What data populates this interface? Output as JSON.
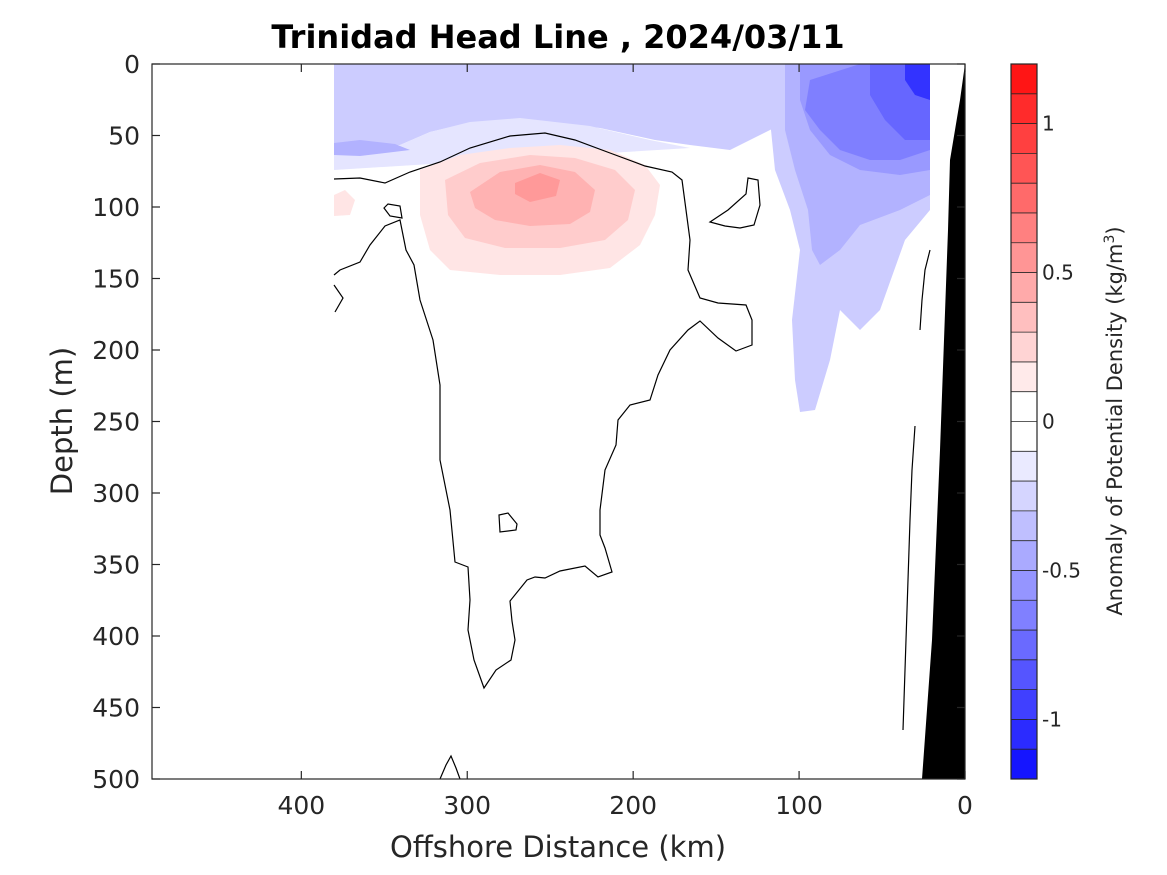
{
  "chart_data": {
    "type": "contour",
    "title": "Trinidad Head Line , 2024/03/11",
    "xlabel": "Offshore Distance (km)",
    "ylabel": "Depth (m)",
    "colorbar_label": "Anomaly of Potential Density (kg/m",
    "colorbar_label_sup": "3",
    "colorbar_label_end": ")",
    "xlim": [
      490,
      0
    ],
    "ylim": [
      500,
      0
    ],
    "x_reversed": true,
    "y_reversed": true,
    "x_ticks": [
      400,
      300,
      200,
      100,
      0
    ],
    "x_tick_labels": [
      "400",
      "300",
      "200",
      "100",
      "0"
    ],
    "y_ticks": [
      0,
      50,
      100,
      150,
      200,
      250,
      300,
      350,
      400,
      450,
      500
    ],
    "y_tick_labels": [
      "0",
      "50",
      "100",
      "150",
      "200",
      "250",
      "300",
      "350",
      "400",
      "450",
      "500"
    ],
    "clim": [
      -1.2,
      1.2
    ],
    "colorbar_levels": 24,
    "colorbar_ticks": [
      1,
      0.5,
      0,
      -0.5,
      -1
    ],
    "colorbar_tick_labels": [
      "1",
      "0.5",
      "0",
      "-0.5",
      "-1"
    ],
    "colormap": {
      "negative": "#0000ff",
      "zero": "#ffffff",
      "positive": "#ff0000"
    },
    "data_extent_km": [
      380,
      20
    ],
    "features": [
      {
        "kind": "negative_anomaly",
        "description": "surface layer",
        "x_range": [
          380,
          20
        ],
        "depth_range": [
          0,
          70
        ],
        "value": -0.2
      },
      {
        "kind": "negative_anomaly",
        "description": "nearshore minimum",
        "x_range": [
          100,
          20
        ],
        "depth_range": [
          0,
          110
        ],
        "value": -0.7
      },
      {
        "kind": "negative_anomaly",
        "description": "nearshore extension",
        "x_range": [
          100,
          20
        ],
        "depth_range": [
          110,
          245
        ],
        "value": -0.15
      },
      {
        "kind": "positive_anomaly",
        "description": "subsurface core",
        "x_range": [
          330,
          185
        ],
        "depth_range": [
          55,
          145
        ],
        "value": 0.35
      },
      {
        "kind": "positive_anomaly",
        "description": "maximum",
        "x_range": [
          270,
          240
        ],
        "depth_range": [
          75,
          95
        ],
        "value": 0.45
      }
    ],
    "contour_level": 0,
    "bathymetry_color": "#000000"
  }
}
